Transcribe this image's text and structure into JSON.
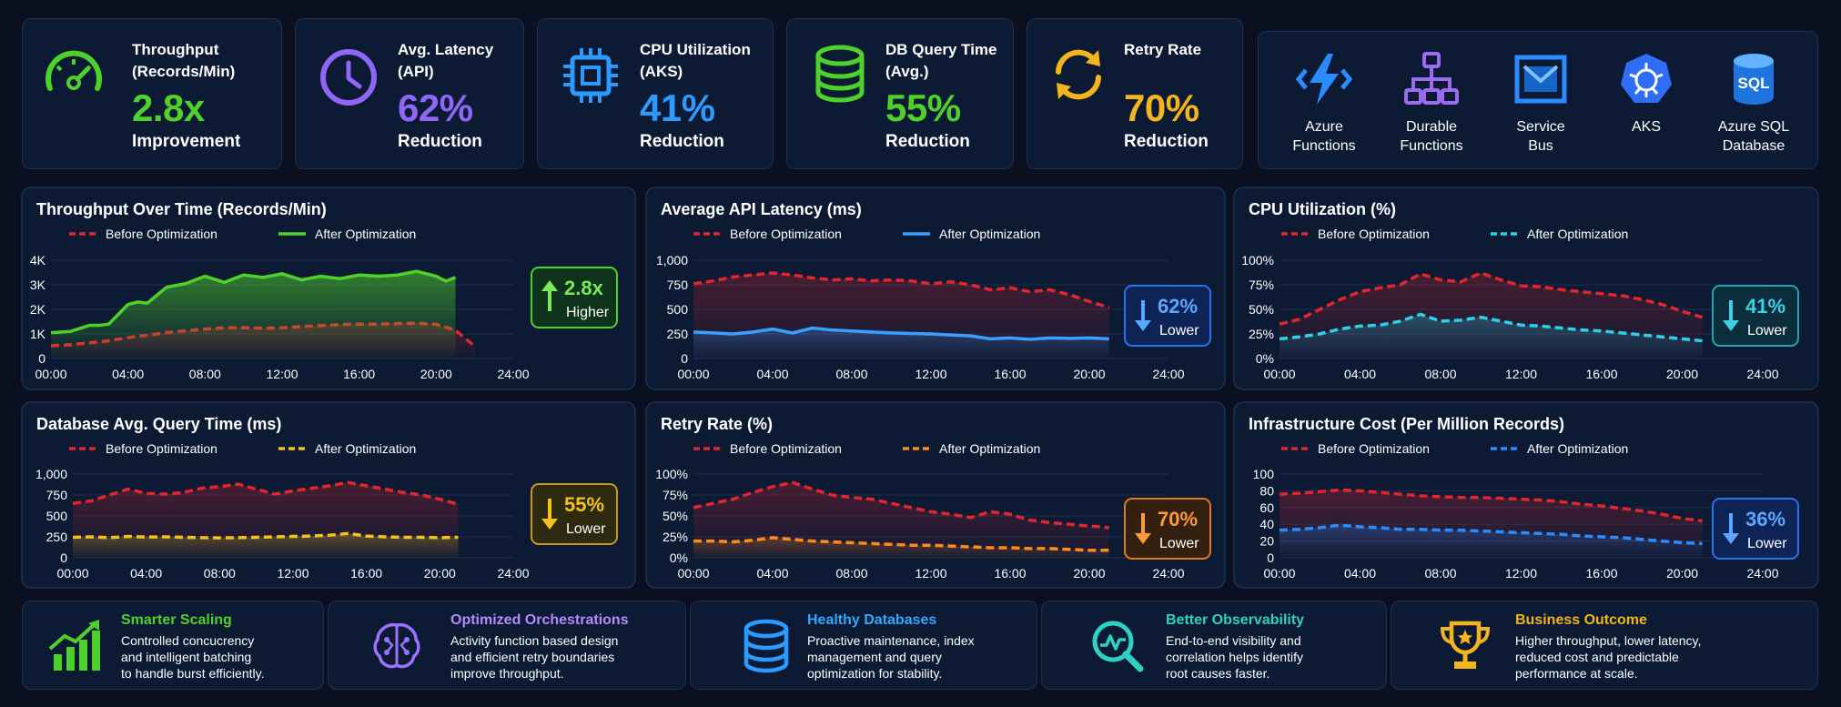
{
  "colors": {
    "before": "#e0262e",
    "throughput": "#4fd12c",
    "latency": "#3aa0ff",
    "cpu": "#2ed1e8",
    "db": "#f2c21d",
    "retry": "#ff8a1c",
    "cost": "#2b8cff",
    "purple": "#8f66f5"
  },
  "kpis": [
    {
      "label1": "Throughput",
      "label2": "(Records/Min)",
      "value": "2.8x",
      "sub": "Improvement",
      "icon": "speedometer-icon",
      "color": "#4fd12c"
    },
    {
      "label1": "Avg. Latency",
      "label2": "(API)",
      "value": "62%",
      "sub": "Reduction",
      "icon": "clock-icon",
      "color": "#8f66f5"
    },
    {
      "label1": "CPU Utilization",
      "label2": "(AKS)",
      "value": "41%",
      "sub": "Reduction",
      "icon": "cpu-chip-icon",
      "color": "#2b9bff"
    },
    {
      "label1": "DB Query Time",
      "label2": "(Avg.)",
      "value": "55%",
      "sub": "Reduction",
      "icon": "database-icon",
      "color": "#4fd12c"
    },
    {
      "label1": "Retry Rate",
      "label2": "",
      "value": "70%",
      "sub": "Reduction",
      "icon": "refresh-icon",
      "color": "#f2b51d"
    }
  ],
  "services": [
    {
      "line1": "Azure",
      "line2": "Functions",
      "icon": "lightning-bolt-icon"
    },
    {
      "line1": "Durable",
      "line2": "Functions",
      "icon": "org-chart-icon"
    },
    {
      "line1": "Service",
      "line2": "Bus",
      "icon": "envelope-icon"
    },
    {
      "line1": "AKS",
      "line2": "",
      "icon": "kubernetes-icon"
    },
    {
      "line1": "Azure SQL",
      "line2": "Database",
      "icon": "sql-database-icon",
      "icon_text": "SQL"
    }
  ],
  "legend": {
    "before": "Before Optimization",
    "after": "After Optimization"
  },
  "chart_data": [
    {
      "type": "line",
      "title": "Throughput Over Time (Records/Min)",
      "xticks": [
        "00:00",
        "04:00",
        "08:00",
        "12:00",
        "16:00",
        "20:00",
        "24:00"
      ],
      "yticks": [
        "0",
        "1K",
        "2K",
        "3K",
        "4K"
      ],
      "ylim": [
        0,
        4000
      ],
      "xlim": [
        0,
        24
      ],
      "series": [
        {
          "name": "Before Optimization",
          "x": [
            0,
            1,
            2,
            3,
            4,
            5,
            6,
            7,
            8,
            9,
            10,
            11,
            12,
            13,
            14,
            15,
            16,
            17,
            18,
            19,
            20,
            21,
            22
          ],
          "values": [
            520,
            560,
            640,
            720,
            850,
            950,
            1050,
            1130,
            1200,
            1250,
            1250,
            1230,
            1250,
            1300,
            1340,
            1380,
            1400,
            1400,
            1420,
            1440,
            1390,
            1150,
            500
          ]
        },
        {
          "name": "After Optimization",
          "x": [
            0,
            1,
            2,
            2.5,
            3,
            4,
            4.5,
            5,
            6,
            7,
            8,
            9,
            10,
            11,
            12,
            13,
            14,
            15,
            16,
            17,
            18,
            19,
            20,
            20.5,
            21
          ],
          "values": [
            1050,
            1100,
            1350,
            1350,
            1400,
            2200,
            2300,
            2250,
            2900,
            3050,
            3350,
            3100,
            3400,
            3300,
            3450,
            3200,
            3350,
            3250,
            3400,
            3350,
            3400,
            3550,
            3350,
            3150,
            3300
          ]
        }
      ],
      "badge": {
        "value": "2.8x",
        "sub": "Higher",
        "direction": "up"
      }
    },
    {
      "type": "line",
      "title": "Average API Latency (ms)",
      "xticks": [
        "00:00",
        "04:00",
        "08:00",
        "12:00",
        "16:00",
        "20:00",
        "24:00"
      ],
      "yticks": [
        "0",
        "250",
        "500",
        "750",
        "1,000"
      ],
      "ylim": [
        0,
        1000
      ],
      "xlim": [
        0,
        24
      ],
      "series": [
        {
          "name": "Before Optimization",
          "x": [
            0,
            1,
            2,
            3,
            4,
            5,
            6,
            7,
            8,
            9,
            10,
            11,
            12,
            13,
            14,
            15,
            16,
            17,
            18,
            19,
            20,
            21
          ],
          "values": [
            760,
            790,
            830,
            850,
            870,
            850,
            820,
            800,
            810,
            790,
            800,
            790,
            760,
            780,
            750,
            700,
            720,
            680,
            700,
            650,
            580,
            520
          ]
        },
        {
          "name": "After Optimization",
          "x": [
            0,
            1,
            2,
            3,
            4,
            5,
            6,
            7,
            8,
            9,
            10,
            11,
            12,
            13,
            14,
            15,
            16,
            17,
            18,
            19,
            20,
            21
          ],
          "values": [
            270,
            260,
            250,
            270,
            300,
            260,
            310,
            290,
            280,
            270,
            260,
            255,
            250,
            240,
            230,
            200,
            210,
            195,
            210,
            205,
            210,
            200
          ]
        }
      ],
      "badge": {
        "value": "62%",
        "sub": "Lower",
        "direction": "down"
      }
    },
    {
      "type": "line",
      "title": "CPU Utilization (%)",
      "xticks": [
        "00:00",
        "04:00",
        "08:00",
        "12:00",
        "16:00",
        "20:00",
        "24:00"
      ],
      "yticks": [
        "0%",
        "25%",
        "50%",
        "75%",
        "100%"
      ],
      "ylim": [
        0,
        100
      ],
      "xlim": [
        0,
        24
      ],
      "series": [
        {
          "name": "Before Optimization",
          "x": [
            0,
            1,
            2,
            3,
            4,
            5,
            6,
            7,
            8,
            9,
            10,
            11,
            12,
            13,
            14,
            15,
            16,
            17,
            18,
            19,
            20,
            21
          ],
          "values": [
            35,
            40,
            50,
            60,
            68,
            72,
            75,
            86,
            80,
            78,
            87,
            80,
            74,
            73,
            70,
            68,
            66,
            64,
            60,
            55,
            48,
            42
          ]
        },
        {
          "name": "After Optimization",
          "x": [
            0,
            1,
            2,
            3,
            4,
            5,
            6,
            7,
            8,
            9,
            10,
            11,
            12,
            13,
            14,
            15,
            16,
            17,
            18,
            19,
            20,
            21
          ],
          "values": [
            20,
            22,
            25,
            30,
            33,
            34,
            38,
            45,
            38,
            39,
            42,
            38,
            34,
            33,
            31,
            29,
            28,
            26,
            24,
            22,
            20,
            18
          ]
        }
      ],
      "badge": {
        "value": "41%",
        "sub": "Lower",
        "direction": "down"
      }
    },
    {
      "type": "line",
      "title": "Database Avg. Query Time (ms)",
      "xticks": [
        "00:00",
        "04:00",
        "08:00",
        "12:00",
        "16:00",
        "20:00",
        "24:00"
      ],
      "yticks": [
        "0",
        "250",
        "500",
        "750",
        "1,000"
      ],
      "ylim": [
        0,
        1000
      ],
      "xlim": [
        0,
        24
      ],
      "series": [
        {
          "name": "Before Optimization",
          "x": [
            0,
            1,
            2,
            3,
            4,
            5,
            6,
            7,
            8,
            9,
            10,
            11,
            12,
            13,
            14,
            15,
            16,
            17,
            18,
            19,
            20,
            21
          ],
          "values": [
            650,
            680,
            750,
            820,
            770,
            760,
            780,
            830,
            850,
            880,
            820,
            760,
            800,
            830,
            860,
            900,
            860,
            820,
            780,
            750,
            700,
            640
          ]
        },
        {
          "name": "After Optimization",
          "x": [
            0,
            1,
            2,
            3,
            4,
            5,
            6,
            7,
            8,
            9,
            10,
            11,
            12,
            13,
            14,
            15,
            16,
            17,
            18,
            19,
            20,
            21
          ],
          "values": [
            245,
            250,
            240,
            255,
            248,
            250,
            245,
            240,
            238,
            240,
            245,
            250,
            255,
            260,
            270,
            290,
            260,
            250,
            245,
            245,
            240,
            245
          ]
        }
      ],
      "badge": {
        "value": "55%",
        "sub": "Lower",
        "direction": "down"
      }
    },
    {
      "type": "line",
      "title": "Retry Rate (%)",
      "xticks": [
        "00:00",
        "04:00",
        "08:00",
        "12:00",
        "16:00",
        "20:00",
        "24:00"
      ],
      "yticks": [
        "0%",
        "25%",
        "50%",
        "75%",
        "100%"
      ],
      "ylim": [
        0,
        100
      ],
      "xlim": [
        0,
        24
      ],
      "series": [
        {
          "name": "Before Optimization",
          "x": [
            0,
            1,
            2,
            3,
            4,
            5,
            6,
            7,
            8,
            9,
            10,
            11,
            12,
            13,
            14,
            15,
            16,
            17,
            18,
            19,
            20,
            21
          ],
          "values": [
            60,
            65,
            70,
            78,
            85,
            90,
            82,
            75,
            72,
            70,
            65,
            60,
            55,
            52,
            48,
            55,
            52,
            45,
            42,
            40,
            38,
            36
          ]
        },
        {
          "name": "After Optimization",
          "x": [
            0,
            1,
            2,
            3,
            4,
            5,
            6,
            7,
            8,
            9,
            10,
            11,
            12,
            13,
            14,
            15,
            16,
            17,
            18,
            19,
            20,
            21
          ],
          "values": [
            20,
            20,
            19,
            21,
            24,
            22,
            20,
            19,
            18,
            17,
            16,
            15,
            15,
            14,
            13,
            12,
            12,
            11,
            11,
            10,
            9,
            9
          ]
        }
      ],
      "badge": {
        "value": "70%",
        "sub": "Lower",
        "direction": "down"
      }
    },
    {
      "type": "line",
      "title": "Infrastructure Cost (Per Million Records)",
      "xticks": [
        "00:00",
        "04:00",
        "08:00",
        "12:00",
        "16:00",
        "20:00",
        "24:00"
      ],
      "yticks": [
        "0",
        "20",
        "40",
        "60",
        "80",
        "100"
      ],
      "ylim": [
        0,
        100
      ],
      "xlim": [
        0,
        24
      ],
      "series": [
        {
          "name": "Before Optimization",
          "x": [
            0,
            1,
            2,
            3,
            4,
            5,
            6,
            7,
            8,
            9,
            10,
            11,
            12,
            13,
            14,
            15,
            16,
            17,
            18,
            19,
            20,
            21
          ],
          "values": [
            76,
            77,
            79,
            81,
            80,
            78,
            76,
            74,
            73,
            72,
            72,
            71,
            70,
            69,
            67,
            64,
            62,
            59,
            56,
            52,
            47,
            44
          ]
        },
        {
          "name": "After Optimization",
          "x": [
            0,
            1,
            2,
            3,
            4,
            5,
            6,
            7,
            8,
            9,
            10,
            11,
            12,
            13,
            14,
            15,
            16,
            17,
            18,
            19,
            20,
            21
          ],
          "values": [
            33,
            34,
            36,
            39,
            37,
            36,
            34,
            34,
            33,
            33,
            32,
            31,
            30,
            29,
            28,
            26,
            25,
            24,
            22,
            20,
            18,
            17
          ]
        }
      ],
      "badge": {
        "value": "36%",
        "sub": "Lower",
        "direction": "down"
      }
    }
  ],
  "features": [
    {
      "title": "Smarter Scaling",
      "desc": "Controlled concucrency\nand intelligent batching\nto handle burst efficiently.",
      "icon": "growth-chart-icon",
      "color": "#4fd12c"
    },
    {
      "title": "Optimized Orchestrations",
      "desc": "Activity function based design\nand efficient retry boundaries\nimprove throughput.",
      "icon": "brain-circuit-icon",
      "color": "#9b72ff"
    },
    {
      "title": "Healthy Databases",
      "desc": "Proactive maintenance, index\nmanagement and query\noptimization for stability.",
      "icon": "database-stack-icon",
      "color": "#2b9bff"
    },
    {
      "title": "Better Observability",
      "desc": "End-to-end visibility and\ncorrelation helps identify\nroot causes faster.",
      "icon": "magnifier-pulse-icon",
      "color": "#2ed1c4"
    },
    {
      "title": "Business Outcome",
      "desc": "Higher throughput, lower latency,\nreduced cost and predictable\nperformance at scale.",
      "icon": "trophy-icon",
      "color": "#f2b51d"
    }
  ]
}
